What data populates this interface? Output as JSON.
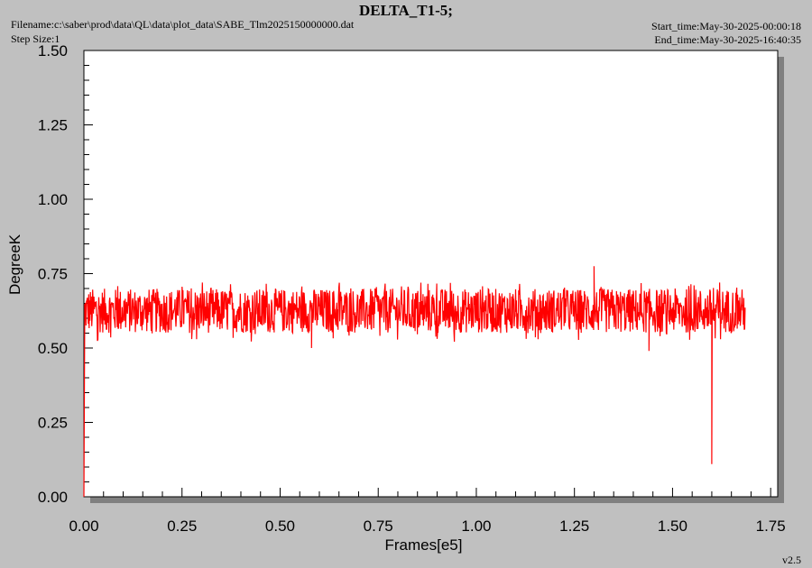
{
  "header": {
    "title": "DELTA_T1-5;",
    "filename": "Filename:c:\\saber\\prod\\data\\QL\\data\\plot_data\\SABE_Tlm2025150000000.dat",
    "step_size": "Step Size:1",
    "start_time": "Start_time:May-30-2025-00:00:18",
    "end_time": "End_time:May-30-2025-16:40:35"
  },
  "footer": {
    "version": "v2.5"
  },
  "colors": {
    "series": "#ff0000",
    "background": "#c0c0c0",
    "plot_area": "#ffffff",
    "shadow": "#808080"
  },
  "chart_data": {
    "type": "line",
    "title": "DELTA_T1-5;",
    "xlabel": "Frames[e5]",
    "ylabel": "DegreeK",
    "xlim": [
      0,
      1.75
    ],
    "ylim": [
      0,
      1.5
    ],
    "x_ticks": [
      "0.00",
      "0.25",
      "0.50",
      "0.75",
      "1.00",
      "1.25",
      "1.50",
      "1.75"
    ],
    "y_ticks": [
      "0.00",
      "0.25",
      "0.50",
      "0.75",
      "1.00",
      "1.25",
      "1.50"
    ],
    "grid": false,
    "series": [
      {
        "name": "",
        "x_range": [
          0,
          1.685
        ],
        "typical_range": [
          0.55,
          0.7
        ],
        "mean": 0.62,
        "notable_points": [
          {
            "x": 0.0,
            "y": 0.0
          },
          {
            "x": 1.3,
            "y": 0.775
          },
          {
            "x": 1.6,
            "y": 0.11
          },
          {
            "x": 0.58,
            "y": 0.5
          },
          {
            "x": 1.44,
            "y": 0.49
          },
          {
            "x": 1.62,
            "y": 0.72
          }
        ]
      }
    ]
  }
}
